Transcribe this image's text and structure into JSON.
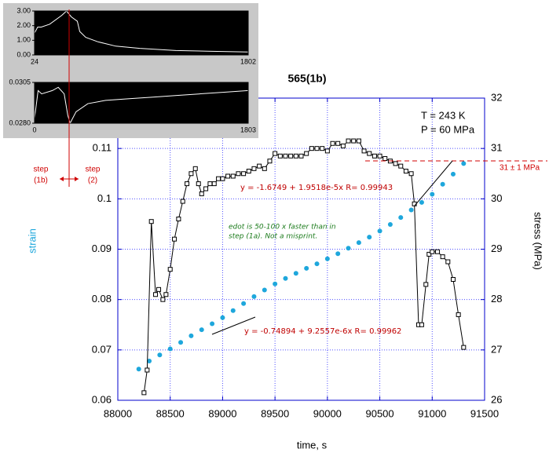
{
  "chart_data": [
    {
      "type": "line",
      "title": "565(1b)",
      "xlabel": "time, s",
      "ylabel": "strain",
      "y2label": "stress (MPa)",
      "xlim": [
        88000,
        91500
      ],
      "xticks": [
        88000,
        88500,
        89000,
        89500,
        90000,
        90500,
        91000,
        91500
      ],
      "ylim": [
        0.06,
        0.12
      ],
      "yticks": [
        0.06,
        0.07,
        0.08,
        0.09,
        0.1,
        0.11
      ],
      "y2lim": [
        26,
        32
      ],
      "y2ticks": [
        26,
        27,
        28,
        29,
        30,
        31,
        32
      ],
      "grid": true,
      "annotations": [
        "T = 243 K",
        "P = 60 MPa",
        "31 ± 1 MPa",
        "y = -1.6749 + 1.9518e-5x   R= 0.99943",
        "edot is 50-100 x faster than in",
        "step (1a).  Not a misprint.",
        "y = -0.74894 + 9.2557e-6x   R= 0.99962",
        "step",
        "(1b)",
        "step",
        "(2)"
      ],
      "series": [
        {
          "color": "#1ea7dc",
          "marker": "circle",
          "line": false,
          "axis": "y",
          "x": [
            88200,
            88300,
            88400,
            88500,
            88600,
            88700,
            88800,
            88900,
            89000,
            89100,
            89200,
            89300,
            89400,
            89500,
            89600,
            89700,
            89800,
            89900,
            90000,
            90100,
            90200,
            90300,
            90400,
            90500,
            90600,
            90700,
            90800,
            90900,
            91000,
            91100,
            91200,
            91300
          ],
          "values": [
            0.0662,
            0.0678,
            0.069,
            0.0702,
            0.0715,
            0.0728,
            0.074,
            0.0752,
            0.0764,
            0.0778,
            0.0792,
            0.0806,
            0.0819,
            0.0831,
            0.0842,
            0.0852,
            0.0862,
            0.0871,
            0.0881,
            0.0891,
            0.0902,
            0.0913,
            0.0924,
            0.0936,
            0.0949,
            0.0963,
            0.0978,
            0.0993,
            0.1009,
            0.1029,
            0.1049,
            0.107
          ]
        },
        {
          "color": "#000000",
          "marker": "square",
          "line": true,
          "axis": "y2",
          "x": [
            88250,
            88280,
            88320,
            88360,
            88390,
            88430,
            88460,
            88500,
            88540,
            88580,
            88620,
            88660,
            88700,
            88740,
            88770,
            88800,
            88840,
            88880,
            88920,
            88960,
            89000,
            89050,
            89100,
            89150,
            89200,
            89250,
            89300,
            89350,
            89400,
            89450,
            89500,
            89550,
            89600,
            89650,
            89700,
            89750,
            89800,
            89850,
            89900,
            89950,
            90000,
            90050,
            90100,
            90150,
            90200,
            90250,
            90300,
            90350,
            90400,
            90450,
            90500,
            90550,
            90600,
            90650,
            90700,
            90750,
            90800,
            90830,
            90870,
            90900,
            90940,
            90970,
            91000,
            91050,
            91100,
            91150,
            91200,
            91250,
            91300
          ],
          "values": [
            26.15,
            26.6,
            29.55,
            28.1,
            28.2,
            28.0,
            28.1,
            28.6,
            29.2,
            29.6,
            29.95,
            30.3,
            30.5,
            30.6,
            30.3,
            30.1,
            30.2,
            30.3,
            30.3,
            30.4,
            30.4,
            30.45,
            30.45,
            30.5,
            30.5,
            30.55,
            30.6,
            30.65,
            30.6,
            30.75,
            30.9,
            30.85,
            30.85,
            30.85,
            30.85,
            30.85,
            30.9,
            31.0,
            31.0,
            31.0,
            30.95,
            31.1,
            31.1,
            31.05,
            31.15,
            31.15,
            31.15,
            30.95,
            30.9,
            30.85,
            30.85,
            30.8,
            30.75,
            30.7,
            30.65,
            30.55,
            30.5,
            29.9,
            27.5,
            27.5,
            28.3,
            28.9,
            28.95,
            28.95,
            28.85,
            28.75,
            28.4,
            27.7,
            27.05
          ]
        }
      ]
    },
    {
      "type": "line",
      "background": "#000000",
      "grid": false,
      "xlim": [
        24,
        1802
      ],
      "xticks": [
        24,
        1802
      ],
      "ylim": [
        0,
        3
      ],
      "yticks": [
        {
          "value": 0,
          "label": "0.00"
        },
        {
          "value": 1,
          "label": "1.00"
        },
        {
          "value": 2,
          "label": "2.00"
        },
        {
          "value": 3,
          "label": "3.00"
        }
      ],
      "series": [
        {
          "color": "#ffffff",
          "marker": "none",
          "line": true,
          "axis": "y",
          "x": [
            24,
            50,
            80,
            150,
            250,
            290,
            330,
            380,
            400,
            450,
            550,
            700,
            900,
            1200,
            1500,
            1802
          ],
          "values": [
            1.5,
            1.9,
            1.9,
            2.1,
            2.7,
            3.0,
            2.6,
            2.3,
            1.6,
            1.2,
            0.9,
            0.6,
            0.45,
            0.3,
            0.25,
            0.2
          ]
        }
      ]
    },
    {
      "type": "line",
      "background": "#000000",
      "grid": false,
      "xlim": [
        0,
        1803
      ],
      "xticks": [
        0,
        1803
      ],
      "ylim": [
        0.028,
        0.0305
      ],
      "yticks": [
        {
          "value": 0.028,
          "label": "0.0280"
        },
        {
          "value": 0.0305,
          "label": "0.0305"
        }
      ],
      "series": [
        {
          "color": "#ffffff",
          "marker": "none",
          "line": true,
          "axis": "y",
          "x": [
            0,
            30,
            60,
            150,
            200,
            250,
            280,
            300,
            350,
            450,
            600,
            800,
            1000,
            1200,
            1400,
            1600,
            1803
          ],
          "values": [
            0.0283,
            0.03,
            0.0298,
            0.03,
            0.0302,
            0.0298,
            0.0285,
            0.028,
            0.0287,
            0.0292,
            0.0294,
            0.0295,
            0.0296,
            0.0297,
            0.0298,
            0.0299,
            0.03
          ]
        }
      ]
    }
  ]
}
